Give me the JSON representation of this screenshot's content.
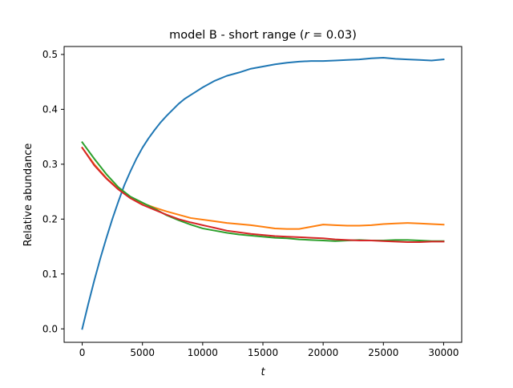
{
  "chart_data": {
    "type": "line",
    "title_prefix": "model B - short range (",
    "title_var": "r",
    "title_suffix": " = 0.03)",
    "xlabel": "t",
    "ylabel": "Relative abundance",
    "xlim": [
      -1500,
      31500
    ],
    "ylim": [
      -0.0245,
      0.5145
    ],
    "xticks": [
      0,
      5000,
      10000,
      15000,
      20000,
      25000,
      30000
    ],
    "xtick_labels": [
      "0",
      "5000",
      "10000",
      "15000",
      "20000",
      "25000",
      "30000"
    ],
    "yticks": [
      0.0,
      0.1,
      0.2,
      0.3,
      0.4,
      0.5
    ],
    "ytick_labels": [
      "0.0",
      "0.1",
      "0.2",
      "0.3",
      "0.4",
      "0.5"
    ],
    "grid": false,
    "legend": "none",
    "series": [
      {
        "color": "#1f77b4",
        "x": [
          0,
          500,
          1000,
          1500,
          2000,
          2500,
          3000,
          3500,
          4000,
          4500,
          5000,
          5500,
          6000,
          6500,
          7000,
          7500,
          8000,
          8500,
          9000,
          9500,
          10000,
          11000,
          12000,
          13000,
          14000,
          15000,
          16000,
          17000,
          18000,
          19000,
          20000,
          21000,
          22000,
          23000,
          24000,
          25000,
          26000,
          27000,
          28000,
          29000,
          30000
        ],
        "y": [
          0.0,
          0.045,
          0.088,
          0.128,
          0.165,
          0.2,
          0.232,
          0.262,
          0.287,
          0.31,
          0.33,
          0.347,
          0.362,
          0.376,
          0.388,
          0.399,
          0.41,
          0.419,
          0.426,
          0.433,
          0.44,
          0.452,
          0.461,
          0.467,
          0.474,
          0.478,
          0.482,
          0.485,
          0.487,
          0.488,
          0.488,
          0.489,
          0.49,
          0.491,
          0.493,
          0.494,
          0.492,
          0.491,
          0.49,
          0.489,
          0.491
        ]
      },
      {
        "color": "#ff7f0e",
        "x": [
          0,
          1000,
          2000,
          3000,
          4000,
          5000,
          6000,
          7000,
          8000,
          9000,
          10000,
          11000,
          12000,
          13000,
          14000,
          15000,
          16000,
          17000,
          18000,
          19000,
          20000,
          21000,
          22000,
          23000,
          24000,
          25000,
          26000,
          27000,
          28000,
          29000,
          30000
        ],
        "y": [
          0.33,
          0.3,
          0.275,
          0.255,
          0.24,
          0.229,
          0.221,
          0.214,
          0.208,
          0.202,
          0.199,
          0.196,
          0.193,
          0.191,
          0.189,
          0.186,
          0.183,
          0.182,
          0.182,
          0.186,
          0.19,
          0.189,
          0.188,
          0.188,
          0.189,
          0.191,
          0.192,
          0.193,
          0.192,
          0.191,
          0.19
        ]
      },
      {
        "color": "#2ca02c",
        "x": [
          0,
          1000,
          2000,
          3000,
          4000,
          5000,
          6000,
          7000,
          8000,
          9000,
          10000,
          11000,
          12000,
          13000,
          14000,
          15000,
          16000,
          17000,
          18000,
          19000,
          20000,
          21000,
          22000,
          23000,
          24000,
          25000,
          26000,
          27000,
          28000,
          29000,
          30000
        ],
        "y": [
          0.34,
          0.31,
          0.282,
          0.258,
          0.241,
          0.23,
          0.219,
          0.207,
          0.198,
          0.19,
          0.183,
          0.179,
          0.175,
          0.172,
          0.17,
          0.168,
          0.166,
          0.165,
          0.163,
          0.162,
          0.161,
          0.16,
          0.161,
          0.162,
          0.161,
          0.161,
          0.162,
          0.162,
          0.161,
          0.16,
          0.16
        ]
      },
      {
        "color": "#d62728",
        "x": [
          0,
          1000,
          2000,
          3000,
          4000,
          5000,
          6000,
          7000,
          8000,
          9000,
          10000,
          11000,
          12000,
          13000,
          14000,
          15000,
          16000,
          17000,
          18000,
          19000,
          20000,
          21000,
          22000,
          23000,
          24000,
          25000,
          26000,
          27000,
          28000,
          29000,
          30000
        ],
        "y": [
          0.33,
          0.298,
          0.274,
          0.254,
          0.238,
          0.226,
          0.217,
          0.208,
          0.2,
          0.194,
          0.189,
          0.184,
          0.179,
          0.176,
          0.173,
          0.171,
          0.169,
          0.168,
          0.167,
          0.166,
          0.165,
          0.163,
          0.162,
          0.161,
          0.161,
          0.16,
          0.159,
          0.158,
          0.158,
          0.159,
          0.159
        ]
      }
    ]
  }
}
